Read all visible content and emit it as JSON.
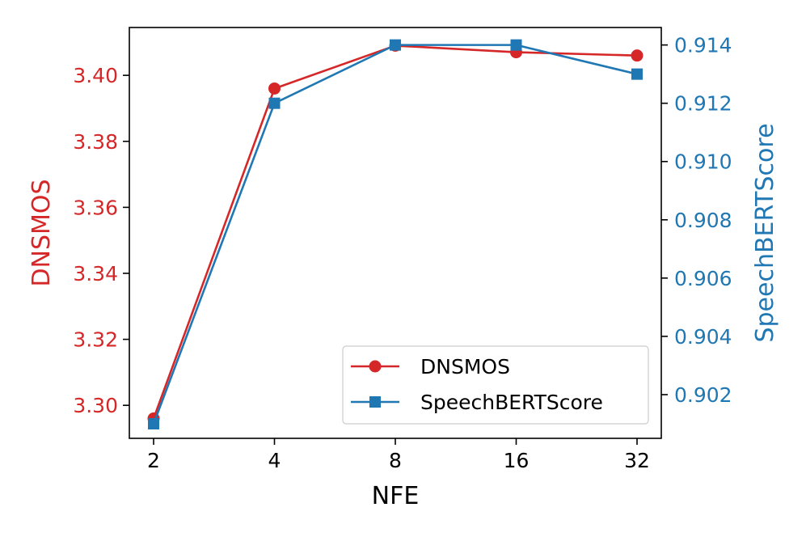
{
  "chart_data": {
    "type": "line",
    "x_type": "categorical",
    "categories": [
      "2",
      "4",
      "8",
      "16",
      "32"
    ],
    "xlabel": "NFE",
    "left_axis": {
      "label": "DNSMOS",
      "color": "#d62728",
      "ylim": [
        3.29,
        3.4145
      ],
      "ticks": [
        3.3,
        3.32,
        3.34,
        3.36,
        3.38,
        3.4
      ],
      "tick_labels": [
        "3.30",
        "3.32",
        "3.34",
        "3.36",
        "3.38",
        "3.40"
      ]
    },
    "right_axis": {
      "label": "SpeechBERTScore",
      "color": "#1f77b4",
      "ylim": [
        0.9005,
        0.9146
      ],
      "ticks": [
        0.902,
        0.904,
        0.906,
        0.908,
        0.91,
        0.912,
        0.914
      ],
      "tick_labels": [
        "0.902",
        "0.904",
        "0.906",
        "0.908",
        "0.910",
        "0.912",
        "0.914"
      ]
    },
    "series": [
      {
        "name": "DNSMOS",
        "axis": "left",
        "marker": "circle",
        "color": "#d62728",
        "values": [
          3.296,
          3.396,
          3.409,
          3.407,
          3.406
        ]
      },
      {
        "name": "SpeechBERTScore",
        "axis": "right",
        "marker": "square",
        "color": "#1f77b4",
        "values": [
          0.901,
          0.912,
          0.914,
          0.914,
          0.913
        ]
      }
    ],
    "legend": {
      "position": "lower-right",
      "entries": [
        "DNSMOS",
        "SpeechBERTScore"
      ]
    }
  }
}
